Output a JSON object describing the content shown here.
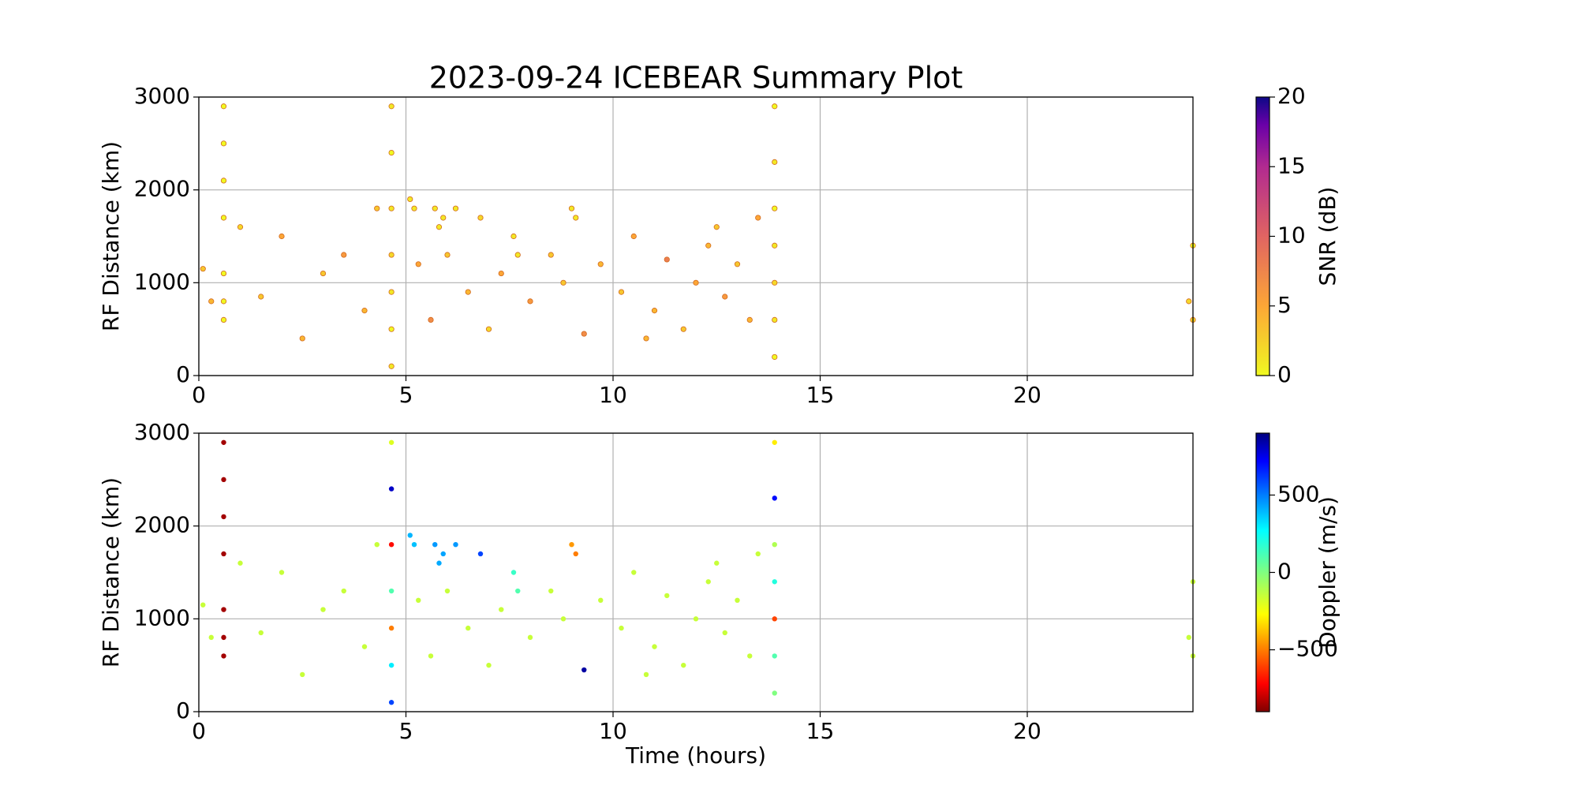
{
  "chart_data": [
    {
      "type": "scatter",
      "title": "2023-09-24 ICEBEAR Summary Plot",
      "ylabel": "RF Distance (km)",
      "xlim": [
        0,
        24
      ],
      "xticks": [
        0,
        5,
        10,
        15,
        20
      ],
      "ylim": [
        0,
        3000
      ],
      "yticks": [
        0,
        1000,
        2000,
        3000
      ],
      "grid": true,
      "x": [
        0.6,
        0.6,
        0.6,
        0.6,
        0.6,
        0.6,
        0.6,
        4.65,
        4.65,
        4.65,
        4.65,
        4.65,
        4.65,
        4.65,
        13.9,
        13.9,
        13.9,
        13.9,
        13.9,
        13.9,
        13.9,
        5.1,
        5.2,
        5.7,
        5.9,
        5.8,
        6.2,
        7.6,
        7.7,
        9.0,
        9.1,
        24.0,
        0.1,
        0.3,
        1.0,
        1.5,
        2.0,
        2.5,
        3.0,
        3.5,
        4.0,
        4.3,
        5.3,
        5.6,
        6.0,
        6.5,
        7.0,
        7.3,
        8.0,
        8.5,
        9.3,
        9.7,
        10.2,
        10.5,
        11.0,
        11.3,
        11.7,
        12.0,
        12.3,
        12.7,
        13.0,
        13.3,
        13.5,
        8.8,
        6.8,
        10.8,
        12.5,
        23.9,
        24.0
      ],
      "y": [
        2900,
        2500,
        2100,
        1700,
        1100,
        800,
        600,
        2900,
        2400,
        1800,
        1300,
        900,
        500,
        100,
        2900,
        2300,
        1800,
        1400,
        1000,
        600,
        200,
        1900,
        1800,
        1800,
        1700,
        1600,
        1800,
        1500,
        1300,
        1800,
        1700,
        1400,
        1150,
        800,
        1600,
        850,
        1500,
        400,
        1100,
        1300,
        700,
        1800,
        1200,
        600,
        1300,
        900,
        500,
        1100,
        800,
        1300,
        450,
        1200,
        900,
        1500,
        700,
        1250,
        500,
        1000,
        1400,
        850,
        1200,
        600,
        1700,
        1000,
        1700,
        400,
        1600,
        800,
        600
      ],
      "c": [
        0,
        0,
        0,
        0,
        0,
        0,
        0,
        1,
        0,
        1,
        2,
        1,
        0,
        1,
        0,
        1,
        0,
        1,
        2,
        1,
        0,
        1,
        1,
        1,
        1,
        1,
        1,
        1,
        1,
        1,
        1,
        0,
        3,
        4,
        2,
        3,
        5,
        4,
        3,
        6,
        4,
        3,
        5,
        7,
        3,
        4,
        2,
        5,
        6,
        3,
        7,
        4,
        3,
        5,
        4,
        8,
        3,
        5,
        4,
        6,
        3,
        4,
        5,
        3,
        2,
        4,
        3,
        2,
        2
      ],
      "colorbar": {
        "label": "SNR (dB)",
        "colormap": "plasma_r",
        "lim": [
          0,
          20
        ],
        "ticks": [
          0,
          5,
          10,
          15,
          20
        ]
      }
    },
    {
      "type": "scatter",
      "ylabel": "RF Distance (km)",
      "xlabel": "Time (hours)",
      "xlim": [
        0,
        24
      ],
      "xticks": [
        0,
        5,
        10,
        15,
        20
      ],
      "ylim": [
        0,
        3000
      ],
      "yticks": [
        0,
        1000,
        2000,
        3000
      ],
      "grid": true,
      "x": [
        0.6,
        0.6,
        0.6,
        0.6,
        0.6,
        0.6,
        0.6,
        4.65,
        4.65,
        4.65,
        4.65,
        4.65,
        4.65,
        4.65,
        13.9,
        13.9,
        13.9,
        13.9,
        13.9,
        13.9,
        13.9,
        5.1,
        5.2,
        5.7,
        5.9,
        5.8,
        6.2,
        7.6,
        7.7,
        9.0,
        9.1,
        24.0,
        0.1,
        0.3,
        1.0,
        1.5,
        2.0,
        2.5,
        3.0,
        3.5,
        4.0,
        4.3,
        5.3,
        5.6,
        6.0,
        6.5,
        7.0,
        7.3,
        8.0,
        8.5,
        9.3,
        9.7,
        10.2,
        10.5,
        11.0,
        11.3,
        11.7,
        12.0,
        12.3,
        12.7,
        13.0,
        13.3,
        13.5,
        8.8,
        6.8,
        10.8,
        12.5,
        23.9,
        24.0
      ],
      "y": [
        2900,
        2500,
        2100,
        1700,
        1100,
        800,
        600,
        2900,
        2400,
        1800,
        1300,
        900,
        500,
        100,
        2900,
        2300,
        1800,
        1400,
        1000,
        600,
        200,
        1900,
        1800,
        1800,
        1700,
        1600,
        1800,
        1500,
        1300,
        1800,
        1700,
        1400,
        1150,
        800,
        1600,
        850,
        1500,
        400,
        1100,
        1300,
        700,
        1800,
        1200,
        600,
        1300,
        900,
        500,
        1100,
        800,
        1300,
        450,
        1200,
        900,
        1500,
        700,
        1250,
        500,
        1000,
        1400,
        850,
        1200,
        600,
        1700,
        1000,
        1700,
        400,
        1600,
        800,
        600
      ],
      "c": [
        -850,
        -850,
        -850,
        -850,
        -850,
        -850,
        -850,
        -200,
        800,
        -700,
        100,
        -500,
        300,
        600,
        -300,
        700,
        -100,
        200,
        -600,
        100,
        0,
        400,
        380,
        450,
        430,
        420,
        450,
        150,
        100,
        -450,
        -500,
        -150,
        -150,
        -150,
        -150,
        -150,
        -150,
        -150,
        -150,
        -150,
        -150,
        -150,
        -150,
        -150,
        -150,
        -150,
        -150,
        -150,
        -150,
        -150,
        850,
        -150,
        -150,
        -150,
        -150,
        -150,
        -150,
        -150,
        -150,
        -150,
        -150,
        -150,
        -150,
        -150,
        600,
        -150,
        -150,
        -150,
        -150
      ],
      "colorbar": {
        "label": "Doppler (m/s)",
        "colormap": "jet_r",
        "lim": [
          -900,
          900
        ],
        "ticks": [
          {
            "value": -500,
            "label": "−500"
          },
          0,
          500
        ]
      }
    }
  ]
}
